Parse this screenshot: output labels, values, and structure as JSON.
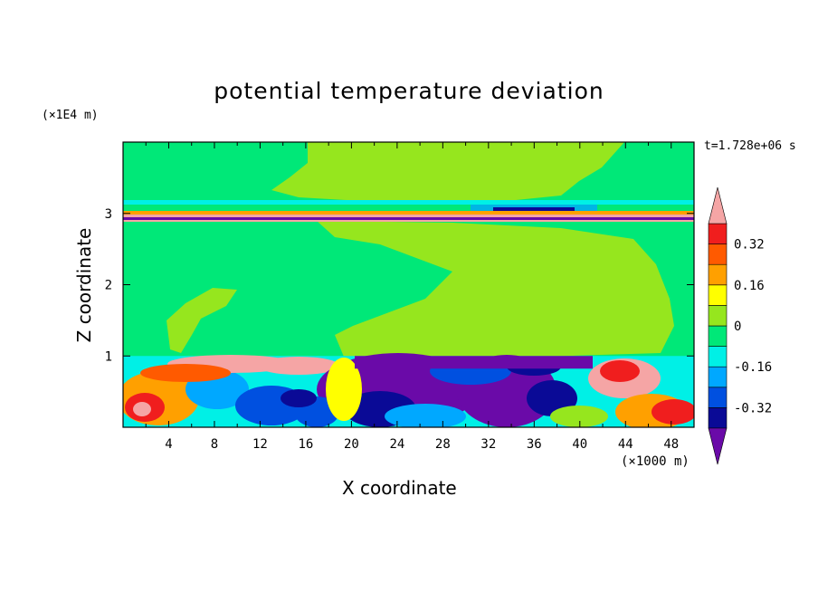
{
  "chart_data": {
    "type": "heatmap",
    "title": "potential temperature deviation",
    "xlabel": "X coordinate",
    "ylabel": "Z coordinate",
    "x_unit": "(×1000 m)",
    "y_unit": "(×1E4 m)",
    "time_label": "t=1.728e+06 s",
    "xlim": [
      0,
      50
    ],
    "ylim": [
      0,
      4
    ],
    "x_ticks": [
      4,
      8,
      12,
      16,
      20,
      24,
      28,
      32,
      36,
      40,
      44,
      48
    ],
    "y_ticks": [
      1,
      2,
      3
    ],
    "colorbar": {
      "levels": [
        -0.4,
        -0.32,
        -0.24,
        -0.16,
        -0.08,
        0,
        0.08,
        0.16,
        0.24,
        0.32,
        0.4
      ],
      "tick_labels": [
        "0.32",
        "0.16",
        "0",
        "-0.16",
        "-0.32"
      ],
      "tick_values": [
        0.32,
        0.16,
        0,
        -0.16,
        -0.32
      ],
      "colors": [
        "#6a0aa8",
        "#0a0a96",
        "#0050e0",
        "#00a8ff",
        "#00f0e6",
        "#00e878",
        "#96e61e",
        "#ffff00",
        "#ffa000",
        "#ff5a00",
        "#f01e1e",
        "#f5a5a5"
      ],
      "extend": "both"
    }
  }
}
